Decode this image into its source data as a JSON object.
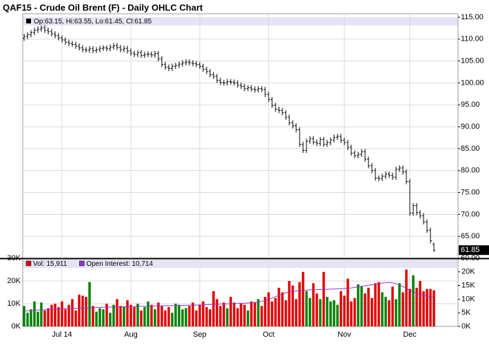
{
  "chart_data": [
    {
      "type": "ohlc",
      "title": "QAF15 - Crude Oil Brent (F) - Daily OHLC Chart",
      "legend_text": "Op:63.15, Hi:63.55, Lo:61.45, Cl:61.85",
      "color": "#000000",
      "grid": true,
      "ylim": [
        60,
        115
      ],
      "yticks": [
        {
          "value": 60,
          "label": "60.00"
        },
        {
          "value": 65,
          "label": "65.00"
        },
        {
          "value": 70,
          "label": "70.00"
        },
        {
          "value": 75,
          "label": "75.00"
        },
        {
          "value": 80,
          "label": "80.00"
        },
        {
          "value": 85,
          "label": "85.00"
        },
        {
          "value": 90,
          "label": "90.00"
        },
        {
          "value": 95,
          "label": "95.00"
        },
        {
          "value": 100,
          "label": "100.00"
        },
        {
          "value": 105,
          "label": "105.00"
        },
        {
          "value": 110,
          "label": "110.00"
        },
        {
          "value": 115,
          "label": "115.00"
        }
      ],
      "open": [
        110.2,
        110.6,
        111.0,
        111.5,
        112.0,
        112.3,
        112.6,
        112.0,
        111.7,
        111.2,
        110.8,
        110.3,
        109.8,
        109.3,
        109.0,
        108.8,
        108.4,
        108.0,
        107.6,
        107.5,
        107.8,
        107.4,
        107.6,
        107.9,
        108.0,
        107.8,
        108.2,
        108.5,
        108.1,
        107.6,
        107.9,
        107.3,
        106.8,
        106.5,
        106.9,
        106.3,
        106.5,
        106.6,
        106.4,
        106.7,
        105.5,
        104.2,
        103.6,
        103.3,
        103.8,
        104.0,
        104.3,
        104.6,
        104.8,
        104.6,
        104.4,
        104.2,
        103.8,
        103.1,
        102.6,
        101.9,
        101.5,
        100.6,
        100.1,
        100.0,
        100.3,
        100.2,
        100.0,
        99.5,
        99.2,
        98.7,
        98.9,
        98.6,
        98.4,
        98.7,
        98.5,
        97.4,
        96.2,
        94.9,
        94.0,
        93.7,
        93.2,
        92.2,
        90.9,
        90.2,
        89.3,
        86.0,
        84.6,
        86.7,
        87.3,
        86.5,
        86.2,
        87.1,
        86.0,
        86.4,
        87.0,
        87.6,
        87.8,
        86.9,
        86.4,
        85.3,
        84.0,
        83.4,
        83.7,
        84.3,
        82.6,
        81.1,
        80.0,
        78.3,
        78.2,
        78.7,
        79.2,
        78.9,
        78.5,
        80.3,
        80.6,
        79.7,
        77.5,
        70.3,
        72.0,
        70.4,
        69.7,
        68.3,
        66.4,
        63.15
      ],
      "high": [
        111.2,
        111.6,
        112.1,
        112.6,
        112.9,
        113.2,
        113.2,
        112.6,
        112.3,
        111.8,
        111.4,
        110.9,
        110.4,
        109.9,
        109.6,
        109.4,
        109.0,
        108.6,
        108.2,
        108.4,
        108.4,
        108.2,
        108.5,
        108.6,
        108.6,
        108.8,
        109.1,
        109.1,
        108.7,
        108.5,
        108.5,
        107.9,
        107.4,
        107.5,
        107.5,
        107.1,
        107.2,
        107.2,
        107.3,
        107.3,
        106.1,
        104.8,
        104.2,
        104.4,
        104.6,
        104.9,
        105.2,
        105.4,
        105.4,
        105.2,
        105.0,
        104.8,
        104.4,
        103.7,
        103.2,
        102.5,
        102.1,
        101.2,
        100.7,
        100.9,
        100.9,
        100.8,
        100.6,
        100.1,
        99.8,
        99.5,
        99.5,
        99.2,
        99.3,
        99.3,
        99.1,
        98.0,
        96.8,
        95.5,
        94.6,
        94.3,
        93.8,
        92.8,
        91.5,
        90.8,
        89.9,
        86.6,
        87.3,
        87.9,
        87.9,
        87.1,
        87.7,
        87.7,
        87.0,
        87.6,
        88.2,
        88.4,
        88.4,
        87.5,
        87.0,
        85.9,
        84.6,
        84.3,
        84.9,
        84.9,
        83.2,
        81.7,
        80.6,
        78.9,
        79.3,
        79.8,
        79.8,
        79.5,
        80.9,
        81.2,
        81.2,
        80.3,
        78.1,
        72.6,
        72.6,
        71.0,
        70.3,
        68.9,
        67.0,
        63.55
      ],
      "low": [
        109.6,
        110.0,
        110.4,
        110.9,
        111.4,
        111.7,
        111.4,
        111.1,
        110.6,
        110.2,
        109.7,
        109.2,
        108.7,
        108.4,
        108.2,
        107.8,
        107.4,
        107.0,
        106.9,
        106.9,
        106.8,
        106.8,
        107.0,
        107.3,
        107.2,
        107.2,
        107.6,
        107.5,
        107.0,
        107.0,
        106.7,
        106.2,
        105.9,
        105.9,
        105.7,
        105.7,
        105.9,
        105.8,
        105.8,
        104.9,
        103.6,
        103.0,
        102.7,
        102.7,
        103.2,
        103.4,
        103.7,
        104.0,
        104.0,
        103.8,
        103.6,
        103.2,
        102.5,
        102.0,
        101.3,
        100.9,
        100.0,
        99.5,
        99.4,
        99.4,
        99.6,
        99.4,
        98.9,
        98.6,
        98.1,
        98.1,
        98.0,
        97.8,
        97.8,
        97.9,
        96.8,
        95.6,
        94.3,
        93.4,
        93.1,
        92.6,
        91.6,
        90.3,
        89.6,
        88.7,
        85.4,
        84.0,
        84.0,
        86.1,
        85.9,
        85.6,
        85.6,
        85.4,
        85.4,
        85.8,
        86.4,
        87.0,
        86.3,
        85.8,
        84.7,
        83.4,
        82.8,
        82.8,
        83.1,
        82.0,
        80.5,
        79.4,
        77.7,
        77.6,
        77.6,
        78.1,
        78.3,
        77.9,
        77.9,
        79.7,
        79.1,
        76.9,
        69.7,
        69.7,
        69.8,
        69.1,
        67.7,
        65.8,
        63.4,
        61.45
      ],
      "close": [
        110.6,
        111.0,
        111.5,
        112.0,
        112.3,
        112.6,
        112.0,
        111.7,
        111.2,
        110.8,
        110.3,
        109.8,
        109.3,
        109.0,
        108.8,
        108.4,
        108.0,
        107.6,
        107.5,
        107.8,
        107.4,
        107.6,
        107.9,
        108.0,
        107.8,
        108.2,
        108.5,
        108.1,
        107.6,
        107.9,
        107.3,
        106.8,
        106.5,
        106.9,
        106.3,
        106.5,
        106.6,
        106.4,
        106.7,
        105.5,
        104.2,
        103.6,
        103.3,
        103.8,
        104.0,
        104.3,
        104.6,
        104.8,
        104.6,
        104.4,
        104.2,
        103.8,
        103.1,
        102.6,
        101.9,
        101.5,
        100.6,
        100.1,
        100.0,
        100.3,
        100.2,
        100.0,
        99.5,
        99.2,
        98.7,
        98.9,
        98.6,
        98.4,
        98.7,
        98.5,
        97.4,
        96.2,
        94.9,
        94.0,
        93.7,
        93.2,
        92.2,
        90.9,
        90.2,
        89.3,
        86.0,
        84.6,
        86.7,
        87.3,
        86.5,
        86.2,
        87.1,
        86.0,
        86.4,
        87.0,
        87.6,
        87.8,
        86.9,
        86.4,
        85.3,
        84.0,
        83.4,
        83.7,
        84.3,
        82.6,
        81.1,
        80.0,
        78.3,
        78.2,
        78.7,
        79.2,
        78.9,
        78.5,
        80.3,
        80.6,
        79.7,
        77.5,
        70.3,
        72.0,
        70.4,
        69.7,
        68.3,
        66.4,
        64.0,
        61.85
      ]
    },
    {
      "type": "bar",
      "grid": true,
      "categories": [
        null,
        null,
        null,
        null,
        null,
        null,
        null,
        null,
        null,
        null,
        null,
        "Jul 14",
        null,
        null,
        null,
        null,
        null,
        null,
        null,
        null,
        null,
        null,
        null,
        null,
        null,
        null,
        null,
        null,
        null,
        null,
        null,
        "Aug",
        null,
        null,
        null,
        null,
        null,
        null,
        null,
        null,
        null,
        null,
        null,
        null,
        null,
        null,
        null,
        null,
        null,
        null,
        null,
        "Sep",
        null,
        null,
        null,
        null,
        null,
        null,
        null,
        null,
        null,
        null,
        null,
        null,
        null,
        null,
        null,
        null,
        null,
        null,
        null,
        "Oct",
        null,
        null,
        null,
        null,
        null,
        null,
        null,
        null,
        null,
        null,
        null,
        null,
        null,
        null,
        null,
        null,
        null,
        null,
        null,
        null,
        null,
        "Nov",
        null,
        null,
        null,
        null,
        null,
        null,
        null,
        null,
        null,
        null,
        null,
        null,
        null,
        null,
        null,
        null,
        null,
        null,
        "Dec",
        null,
        null,
        null,
        null,
        null,
        null,
        null
      ],
      "ylim": [
        0,
        30000
      ],
      "yticks": [
        {
          "value": 0,
          "label": "0K"
        },
        {
          "value": 10000,
          "label": "10K"
        },
        {
          "value": 20000,
          "label": "20K"
        },
        {
          "value": 30000,
          "label": "30K"
        }
      ],
      "y2lim": [
        0,
        25000
      ],
      "y2ticks": [
        {
          "value": 0,
          "label": "0K"
        },
        {
          "value": 5000,
          "label": "5K"
        },
        {
          "value": 10000,
          "label": "10K"
        },
        {
          "value": 15000,
          "label": "15K"
        },
        {
          "value": 20000,
          "label": "20K"
        }
      ],
      "series": [
        {
          "name": "Vol: 15,911",
          "color": "#e00000",
          "up_color": "#008000",
          "values": [
            9000,
            6000,
            7500,
            11000,
            6500,
            10500,
            7000,
            8000,
            9500,
            10000,
            8500,
            11000,
            7500,
            9500,
            12000,
            7000,
            14000,
            13500,
            13000,
            19500,
            9000,
            6500,
            8000,
            7500,
            10000,
            6000,
            9500,
            12000,
            9000,
            8500,
            11500,
            9500,
            8500,
            10000,
            7000,
            8500,
            11000,
            9500,
            7500,
            10500,
            9000,
            7000,
            8500,
            6000,
            10000,
            9500,
            7500,
            8000,
            9000,
            10500,
            7000,
            9500,
            11000,
            8500,
            7500,
            15500,
            12000,
            9000,
            10500,
            8000,
            13000,
            10500,
            8000,
            10000,
            9500,
            7000,
            11000,
            10500,
            12000,
            9000,
            13000,
            15000,
            11000,
            12500,
            17000,
            15000,
            11500,
            20000,
            18000,
            12000,
            19500,
            24000,
            15500,
            12500,
            19000,
            14500,
            12000,
            24000,
            13000,
            11000,
            11500,
            9500,
            15500,
            13500,
            21000,
            11000,
            12500,
            18500,
            17500,
            14500,
            17000,
            12500,
            19000,
            19500,
            15000,
            13000,
            11500,
            17500,
            12000,
            19000,
            15000,
            25000,
            16500,
            22500,
            17000,
            20000,
            15500,
            16500,
            16500,
            15911
          ]
        },
        {
          "name": "Open Interest: 10,714",
          "color": "#9933cc",
          "axis": "y2",
          "values": [
            5600,
            5700,
            5800,
            5900,
            6000,
            6000,
            6100,
            6200,
            6200,
            6300,
            6300,
            6400,
            6500,
            6500,
            6600,
            6600,
            6700,
            6700,
            6800,
            6800,
            6900,
            6900,
            7000,
            7000,
            7000,
            7100,
            7100,
            7100,
            7200,
            7200,
            7200,
            7300,
            7300,
            7300,
            7400,
            7400,
            7400,
            7500,
            7500,
            7500,
            7500,
            7600,
            7600,
            7600,
            7600,
            7700,
            7700,
            7700,
            7800,
            7800,
            7800,
            7900,
            7900,
            8000,
            8000,
            8100,
            8100,
            8200,
            8200,
            8300,
            8300,
            8400,
            8400,
            8500,
            8500,
            8600,
            8700,
            8800,
            9000,
            9200,
            9500,
            9900,
            10400,
            10900,
            11400,
            11900,
            12300,
            12600,
            12800,
            13000,
            13100,
            13200,
            13300,
            13400,
            13400,
            13500,
            13500,
            13600,
            13600,
            13700,
            13700,
            13800,
            13800,
            13900,
            14000,
            14100,
            14300,
            14500,
            14700,
            14900,
            15100,
            15300,
            15500,
            15700,
            15900,
            16000,
            16100,
            16000,
            15700,
            15200,
            14600,
            13900,
            13200,
            12600,
            12100,
            11700,
            11400,
            11100,
            10900,
            10714
          ]
        }
      ]
    }
  ]
}
